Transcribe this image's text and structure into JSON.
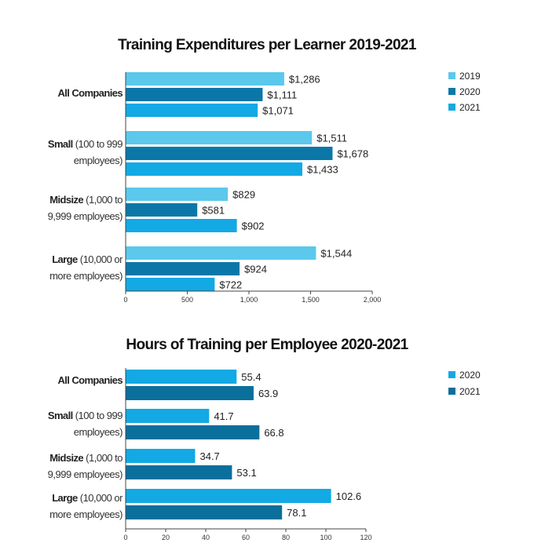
{
  "chart_data": [
    {
      "type": "bar",
      "orientation": "horizontal",
      "title": "Training Expenditures per Learner 2019-2021",
      "categories": [
        {
          "name": "All Companies",
          "detail": ""
        },
        {
          "name": "Small",
          "detail": "(100 to 999 employees)",
          "line1": "(100 to 999",
          "line2": "employees)"
        },
        {
          "name": "Midsize",
          "detail": "(1,000 to 9,999 employees)",
          "line1": "(1,000 to",
          "line2": "9,999 employees)"
        },
        {
          "name": "Large",
          "detail": "(10,000 or more employees)",
          "line1": "(10,000 or",
          "line2": "more employees)"
        }
      ],
      "series": [
        {
          "name": "2019",
          "color": "#5bc8ec",
          "values": [
            1286,
            1511,
            829,
            1544
          ],
          "labels": [
            "$1,286",
            "$1,511",
            "$829",
            "$1,544"
          ]
        },
        {
          "name": "2020",
          "color": "#0b77a8",
          "values": [
            1111,
            1678,
            581,
            924
          ],
          "labels": [
            "$1,111",
            "$1,678",
            "$581",
            "$924"
          ]
        },
        {
          "name": "2021",
          "color": "#12a9e4",
          "values": [
            1071,
            1433,
            902,
            722
          ],
          "labels": [
            "$1,071",
            "$1,433",
            "$902",
            "$722"
          ]
        }
      ],
      "xlim": [
        0,
        2000
      ],
      "xticks": [
        0,
        500,
        1000,
        1500,
        2000
      ],
      "xtick_labels": [
        "0",
        "500",
        "1,000",
        "1,500",
        "2,000"
      ],
      "legend": "top-right",
      "grid": false
    },
    {
      "type": "bar",
      "orientation": "horizontal",
      "title": "Hours of Training per Employee 2020-2021",
      "categories": [
        {
          "name": "All Companies",
          "detail": ""
        },
        {
          "name": "Small",
          "detail": "(100 to 999 employees)",
          "line1": "(100 to 999",
          "line2": "employees)"
        },
        {
          "name": "Midsize",
          "detail": "(1,000 to 9,999 employees)",
          "line1": "(1,000 to",
          "line2": "9,999 employees)"
        },
        {
          "name": "Large",
          "detail": "(10,000 or more employees)",
          "line1": "(10,000 or",
          "line2": "more employees)"
        }
      ],
      "series": [
        {
          "name": "2020",
          "color": "#12a9e4",
          "values": [
            55.4,
            41.7,
            34.7,
            102.6
          ],
          "labels": [
            "55.4",
            "41.7",
            "34.7",
            "102.6"
          ]
        },
        {
          "name": "2021",
          "color": "#0b6f9c",
          "values": [
            63.9,
            66.8,
            53.1,
            78.1
          ],
          "labels": [
            "63.9",
            "66.8",
            "53.1",
            "78.1"
          ]
        }
      ],
      "xlim": [
        0,
        120
      ],
      "xticks": [
        0,
        20,
        40,
        60,
        80,
        100,
        120
      ],
      "xtick_labels": [
        "0",
        "20",
        "40",
        "60",
        "80",
        "100",
        "120"
      ],
      "legend": "top-right",
      "grid": false
    }
  ]
}
